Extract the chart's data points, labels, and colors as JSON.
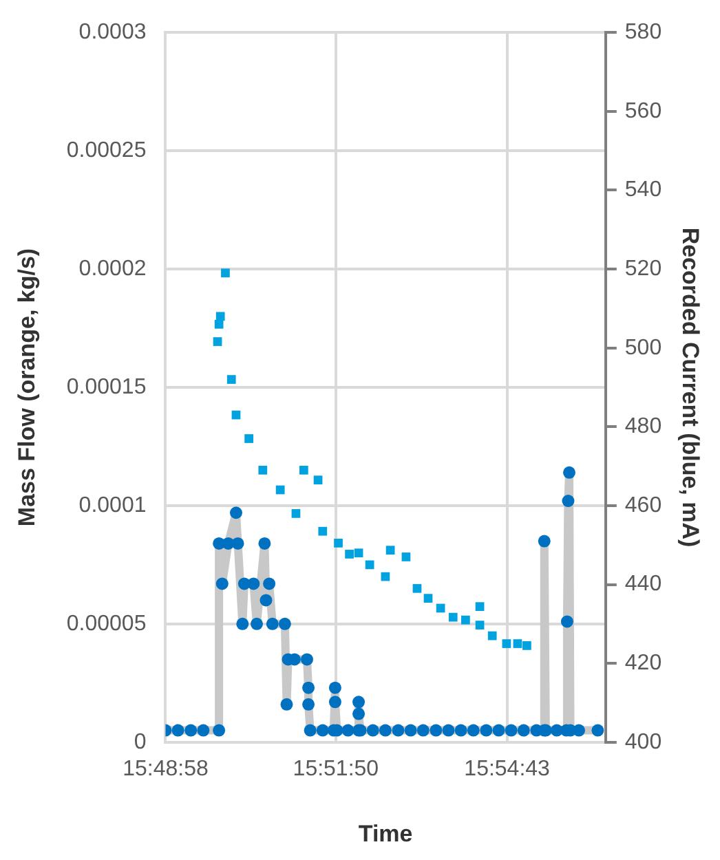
{
  "chart_data": {
    "type": "scatter",
    "xlabel": "Time",
    "ylabel": "Mass Flow (orange, kg/s)",
    "y2label": "Recorded Current (blue, mA)",
    "xlim": [
      15.8161,
      15.9396
    ],
    "xticks": [
      {
        "value": 15.8161,
        "label": "15:48:58"
      },
      {
        "value": 15.86389,
        "label": "15:51:50"
      },
      {
        "value": 15.91194,
        "label": "15:54:43"
      }
    ],
    "ylim": [
      0,
      0.0003
    ],
    "yticks": [
      0,
      {
        "value": 5e-05,
        "label": "0.00005"
      },
      0.0001,
      0.00015,
      0.0002,
      0.00025,
      0.0003
    ],
    "y2lim": [
      400,
      580
    ],
    "y2ticks": [
      400,
      420,
      440,
      460,
      480,
      500,
      520,
      540,
      560,
      580
    ],
    "grid": true,
    "legend": false,
    "x": [
      15.8161,
      15.8196,
      15.8232,
      15.8267,
      15.8311,
      15.8311,
      15.832,
      15.8337,
      15.8359,
      15.8364,
      15.8377,
      15.8382,
      15.8408,
      15.8417,
      15.8439,
      15.8443,
      15.8452,
      15.8461,
      15.8496,
      15.8501,
      15.8505,
      15.8523,
      15.8558,
      15.8562,
      15.8562,
      15.8567,
      15.8602,
      15.8633,
      15.8637,
      15.8637,
      15.8642,
      15.8673,
      15.8703,
      15.8703,
      15.8703,
      15.8708,
      15.8743,
      15.8778,
      15.8814,
      15.8849,
      15.8884,
      15.892,
      15.8955,
      15.899,
      15.9025,
      15.9061,
      15.9096,
      15.9131,
      15.9166,
      15.9202,
      15.9224,
      15.9224,
      15.9228,
      15.9259,
      15.9286,
      15.9288,
      15.9291,
      15.9294,
      15.9297,
      15.9321,
      15.9374
    ],
    "series": [
      {
        "type": "line",
        "marker": "none",
        "color": "#c8c8c8",
        "values": [
          5e-06,
          5e-06,
          5e-06,
          5e-06,
          5e-06,
          8.4e-05,
          6.7e-05,
          8.4e-05,
          9.7e-05,
          8.4e-05,
          5e-05,
          6.7e-05,
          6.7e-05,
          5e-05,
          8.4e-05,
          6e-05,
          6.7e-05,
          5e-05,
          5e-05,
          1.6e-05,
          3.5e-05,
          3.5e-05,
          3.5e-05,
          2.3e-05,
          1.6e-05,
          5e-06,
          5e-06,
          5e-06,
          2.3e-05,
          1.7e-05,
          5e-06,
          5e-06,
          5e-06,
          1.7e-05,
          1.2e-05,
          5e-06,
          5e-06,
          5e-06,
          5e-06,
          5e-06,
          5e-06,
          5e-06,
          5e-06,
          5e-06,
          5e-06,
          5e-06,
          5e-06,
          5e-06,
          5e-06,
          5e-06,
          5e-06,
          8.5e-05,
          5e-06,
          5e-06,
          5e-06,
          5.1e-05,
          0.000102,
          0.000114,
          5e-06,
          5e-06,
          5e-06
        ]
      },
      {
        "type": "scatter",
        "marker": "circle",
        "color": "#0070c0",
        "values": [
          5e-06,
          5e-06,
          5e-06,
          5e-06,
          5e-06,
          8.4e-05,
          6.7e-05,
          8.4e-05,
          9.7e-05,
          8.4e-05,
          5e-05,
          6.7e-05,
          6.7e-05,
          5e-05,
          8.4e-05,
          6e-05,
          6.7e-05,
          5e-05,
          5e-05,
          1.6e-05,
          3.5e-05,
          3.5e-05,
          3.5e-05,
          2.3e-05,
          1.6e-05,
          5e-06,
          5e-06,
          5e-06,
          2.3e-05,
          1.7e-05,
          5e-06,
          5e-06,
          5e-06,
          1.7e-05,
          1.2e-05,
          5e-06,
          5e-06,
          5e-06,
          5e-06,
          5e-06,
          5e-06,
          5e-06,
          5e-06,
          5e-06,
          5e-06,
          5e-06,
          5e-06,
          5e-06,
          5e-06,
          5e-06,
          5e-06,
          8.5e-05,
          5e-06,
          5e-06,
          5e-06,
          5.1e-05,
          0.000102,
          0.000114,
          5e-06,
          5e-06,
          5e-06
        ]
      },
      {
        "type": "scatter",
        "marker": "square",
        "color": "#00a2e0",
        "axis": "y2",
        "x": [
          15.8307,
          15.8311,
          15.8315,
          15.8329,
          15.8346,
          15.8359,
          15.8395,
          15.8434,
          15.8483,
          15.8527,
          15.8549,
          15.8589,
          15.8602,
          15.8646,
          15.8677,
          15.8703,
          15.8734,
          15.8778,
          15.8792,
          15.8836,
          15.8867,
          15.8898,
          15.8933,
          15.8968,
          15.9003,
          15.9043,
          15.9043,
          15.9078,
          15.9118,
          15.9149,
          15.9175
        ],
        "values": [
          501.6,
          506,
          508,
          519,
          492,
          483,
          477,
          469,
          464,
          458,
          469,
          466.5,
          453.5,
          450.5,
          447.7,
          448,
          445,
          442,
          448.7,
          447,
          439,
          436.5,
          434,
          431.7,
          431,
          434.4,
          429.7,
          427,
          425,
          425,
          424.5
        ]
      }
    ]
  }
}
